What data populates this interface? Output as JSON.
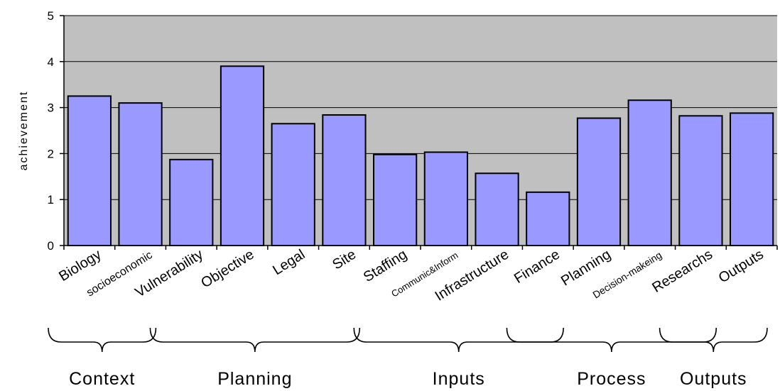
{
  "chart_data": {
    "type": "bar",
    "categories": [
      "Biology",
      "socioeconomic",
      "Vulnerability",
      "Objective",
      "Legal",
      "Site",
      "Staffing",
      "Communic&Inform",
      "Infrastructure",
      "Finance",
      "Planning",
      "Decision-makeing",
      "Researchs",
      "Outputs"
    ],
    "series": [
      {
        "values": [
          3.25,
          3.1,
          1.87,
          3.9,
          2.65,
          2.84,
          1.98,
          2.03,
          1.57,
          1.16,
          2.77,
          3.16,
          2.82,
          2.88
        ]
      }
    ],
    "ylabel": "achievement",
    "ylim": [
      0,
      5
    ],
    "yticks": [
      "0",
      "1",
      "2",
      "3",
      "4",
      "5"
    ],
    "grid": true,
    "colors": {
      "bar_fill": "#9999ff",
      "plot_background": "#c0c0c0",
      "bar_stroke": "#000000"
    },
    "groups": [
      {
        "label": "Context",
        "start": 0,
        "end": 1
      },
      {
        "label": "Planning",
        "start": 2,
        "end": 5
      },
      {
        "label": "Inputs",
        "start": 6,
        "end": 9
      },
      {
        "label": "Process",
        "start": 9,
        "end": 12
      },
      {
        "label": "Outputs",
        "start": 12,
        "end": 13
      }
    ]
  }
}
